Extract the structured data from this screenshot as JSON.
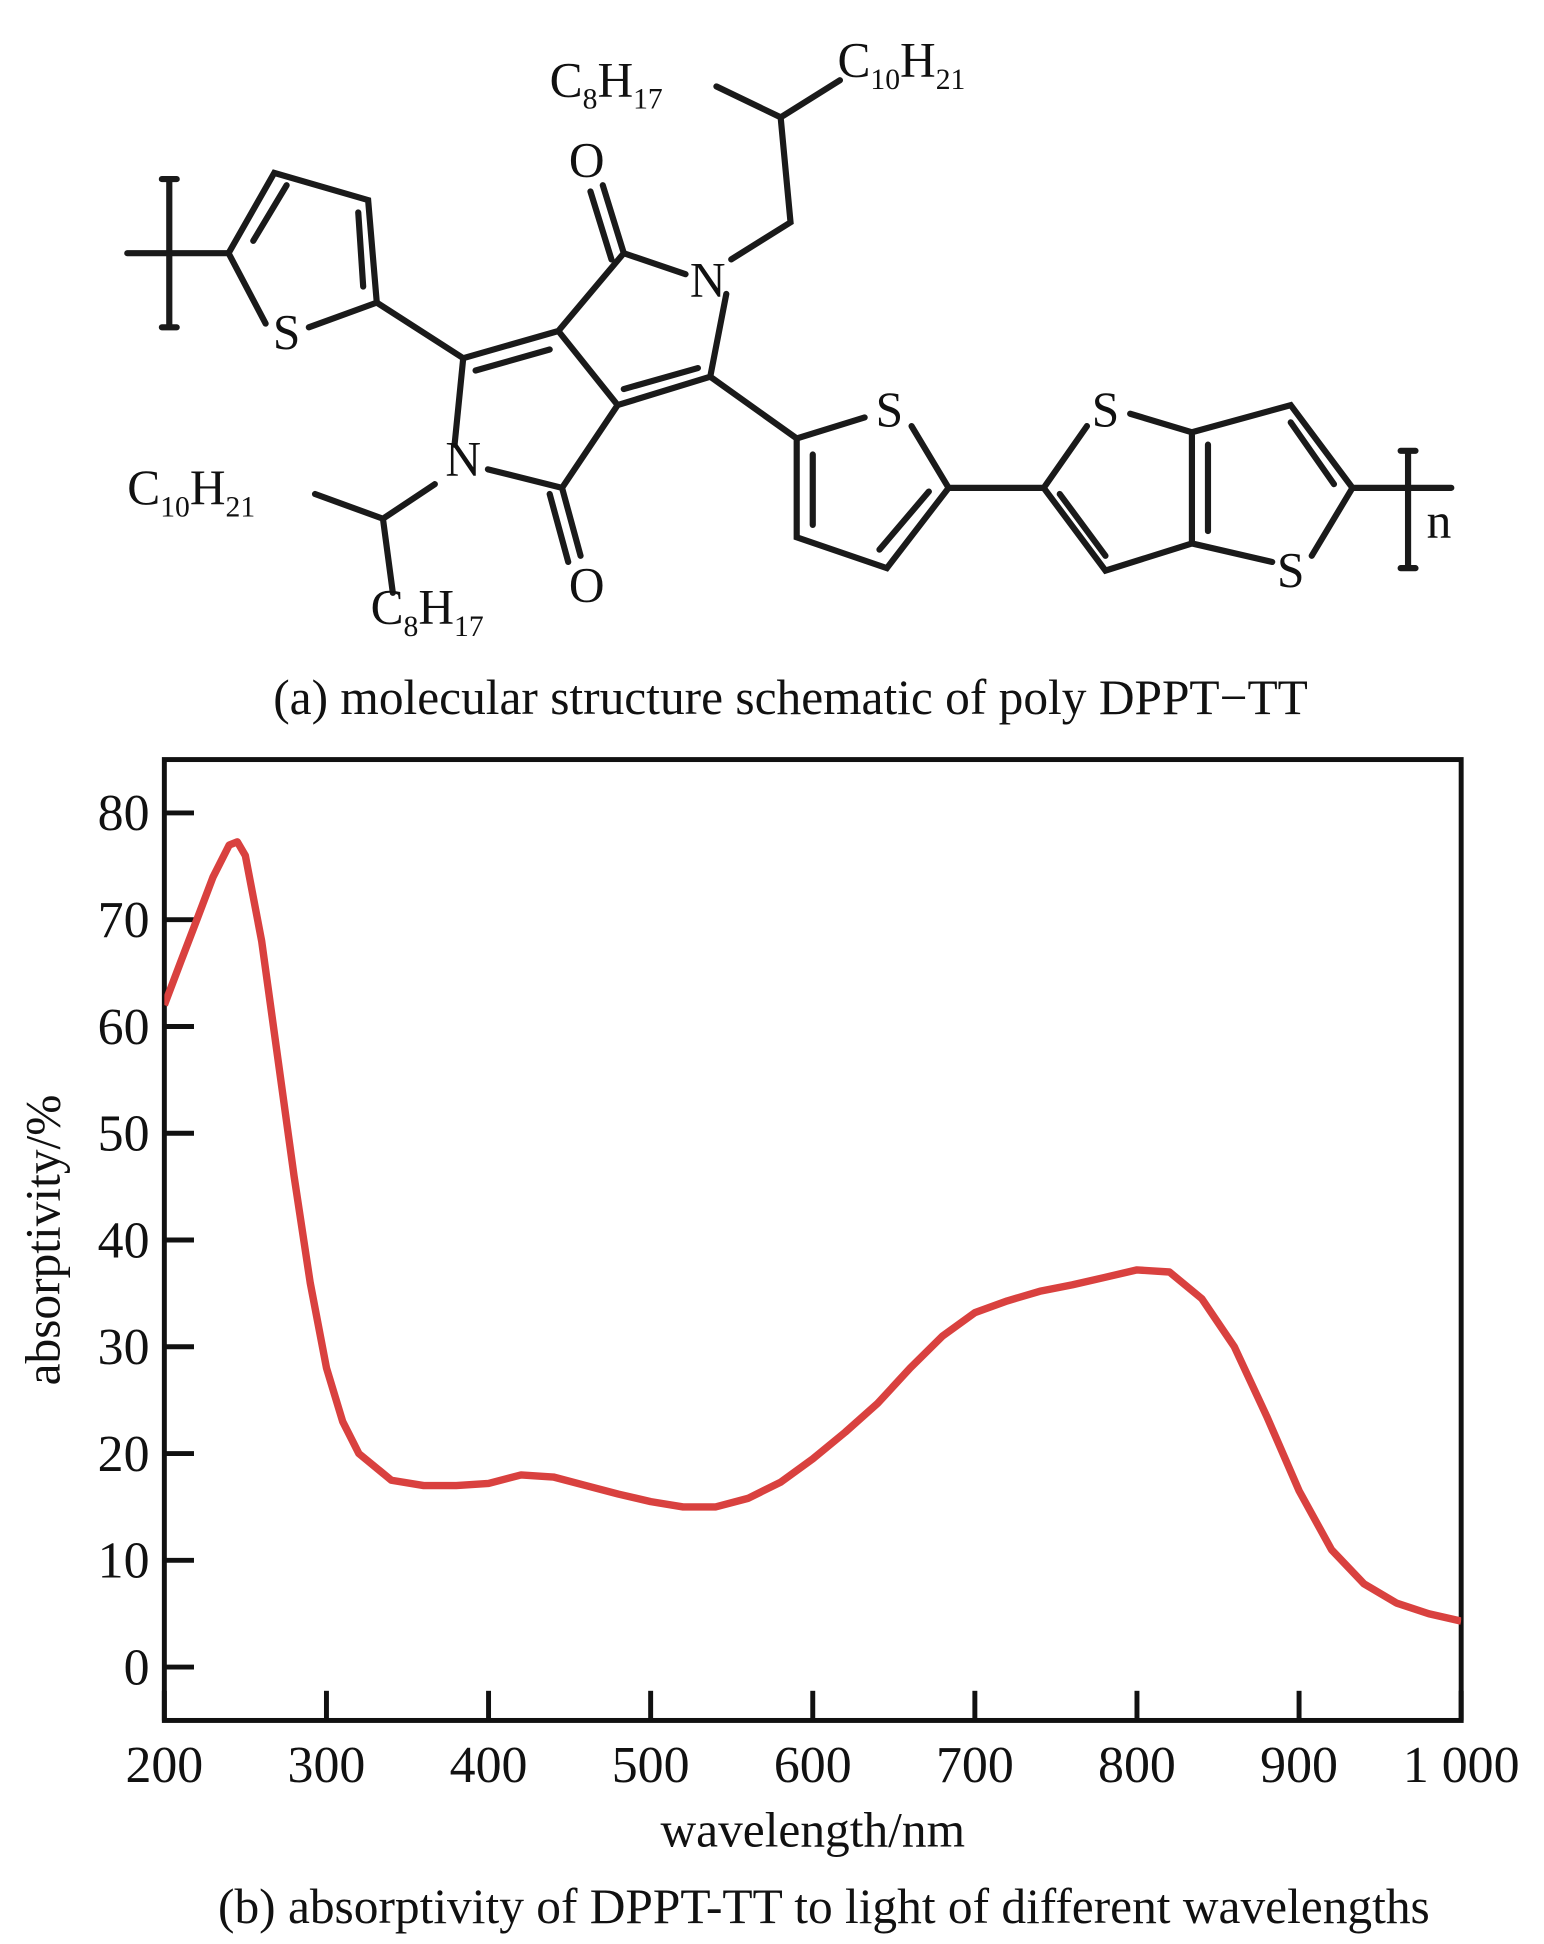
{
  "molecule": {
    "caption": "(a) molecular structure schematic of poly DPPT−TT",
    "formulas": [
      {
        "parts": [
          "C",
          "8",
          "H",
          "17"
        ]
      },
      {
        "parts": [
          "C",
          "10",
          "H",
          "21"
        ]
      },
      {
        "parts": [
          "C",
          "10",
          "H",
          "21"
        ]
      },
      {
        "parts": [
          "C",
          "8",
          "H",
          "17"
        ]
      }
    ],
    "atoms": [
      "O",
      "N",
      "S",
      "N",
      "O",
      "S",
      "S",
      "S"
    ],
    "repeat": "n"
  },
  "chart_data": {
    "type": "line",
    "title": "(b) absorptivity of DPPT-TT to light of different wavelengths",
    "xlabel": "wavelength/nm",
    "ylabel": "absorptivity/%",
    "color": "#d9413f",
    "x": [
      200,
      210,
      220,
      230,
      240,
      245,
      250,
      260,
      270,
      280,
      290,
      300,
      310,
      320,
      340,
      360,
      380,
      400,
      420,
      440,
      460,
      480,
      500,
      520,
      540,
      560,
      580,
      600,
      620,
      640,
      660,
      680,
      700,
      720,
      740,
      760,
      780,
      800,
      820,
      840,
      860,
      880,
      900,
      920,
      940,
      960,
      980,
      1000
    ],
    "values": [
      62,
      66,
      70,
      74,
      77,
      77.3,
      76,
      68,
      57,
      46,
      36,
      28,
      23,
      20,
      17.5,
      17,
      17,
      17.2,
      18,
      17.8,
      17,
      16.2,
      15.5,
      15,
      15,
      15.8,
      17.3,
      19.5,
      22,
      24.7,
      28,
      31,
      33.2,
      34.3,
      35.2,
      35.8,
      36.5,
      37.2,
      37,
      34.5,
      30,
      23.5,
      16.5,
      11,
      7.8,
      6,
      5,
      4.3
    ],
    "xlim": [
      200,
      1000
    ],
    "ylim": [
      -5,
      85
    ],
    "xticks": [
      200,
      300,
      400,
      500,
      600,
      700,
      800,
      900,
      {
        "value": 1000,
        "label": "1 000"
      }
    ],
    "yticks": [
      0,
      10,
      20,
      30,
      40,
      50,
      60,
      70,
      80
    ]
  }
}
